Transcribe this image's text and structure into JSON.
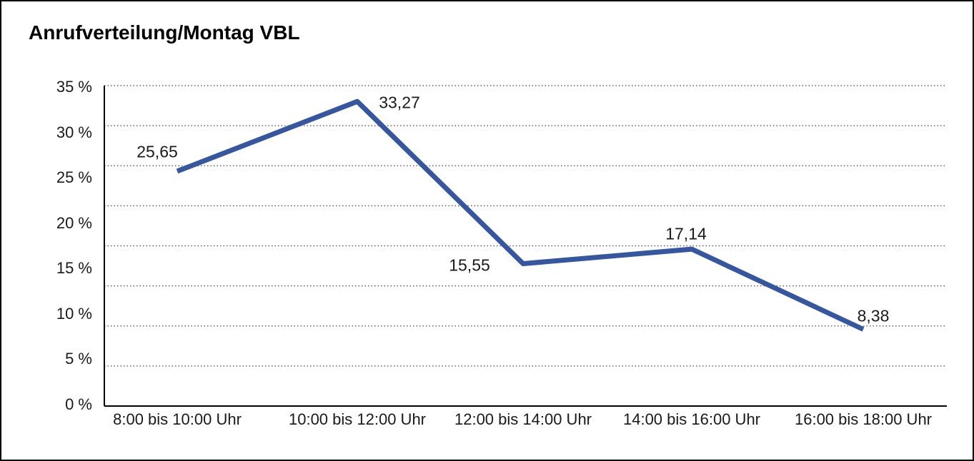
{
  "title": "Anrufverteilung/Montag VBL",
  "chart_data": {
    "type": "line",
    "title": "Anrufverteilung/Montag VBL",
    "categories": [
      "8:00 bis 10:00 Uhr",
      "10:00 bis 12:00 Uhr",
      "12:00 bis 14:00 Uhr",
      "14:00 bis 16:00 Uhr",
      "16:00 bis 18:00 Uhr"
    ],
    "values": [
      25.65,
      33.27,
      15.55,
      17.14,
      8.38
    ],
    "point_labels": [
      "25,65",
      "33,27",
      "15,55",
      "17,14",
      "8,38"
    ],
    "y_tick_labels": [
      "35 %",
      "30 %",
      "25 %",
      "20 %",
      "15 %",
      "10 %",
      "5 %",
      "0 %"
    ],
    "ylim": [
      0,
      35
    ],
    "xlabel": "",
    "ylabel": "",
    "legend": "none",
    "grid": "horizontal-dotted",
    "line_color": "#3656a0",
    "grid_color": "#444444",
    "axis_color": "#000000",
    "text_color": "#1a1a1a"
  }
}
